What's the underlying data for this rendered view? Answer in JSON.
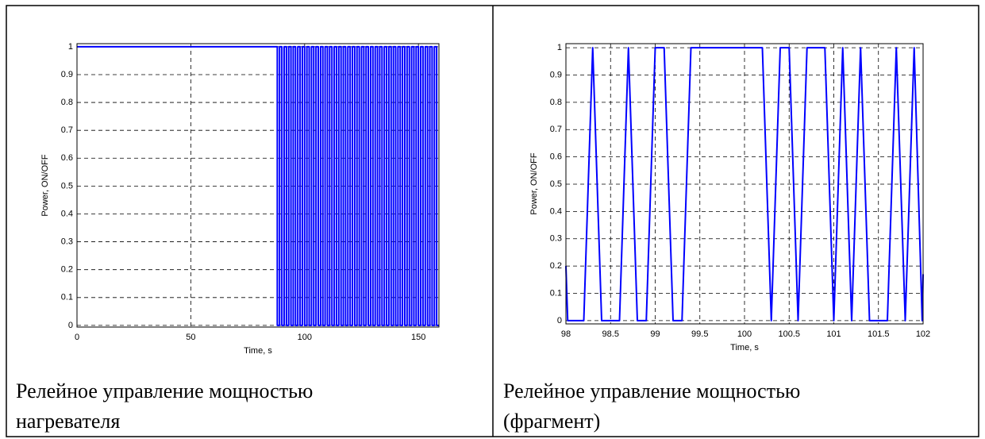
{
  "chart_data": [
    {
      "type": "line",
      "xlabel": "Time, s",
      "ylabel": "Power, ON/OFF",
      "xlim": [
        0,
        159
      ],
      "xticks": [
        0,
        50,
        100,
        150
      ],
      "ylim": [
        -0.006,
        1.011
      ],
      "yticks": [
        0,
        0.1,
        0.2,
        0.3,
        0.4,
        0.5,
        0.6,
        0.7,
        0.8,
        0.9,
        1
      ],
      "grid": true,
      "x": [
        0,
        88,
        88,
        89,
        89,
        90,
        90,
        91,
        91,
        92,
        92,
        93,
        93,
        94,
        94,
        95,
        95,
        96,
        96,
        97,
        97,
        98,
        98,
        99,
        99,
        100,
        100,
        101,
        101,
        102,
        102,
        103,
        103,
        104,
        104,
        105,
        105,
        106,
        106,
        107,
        107,
        108,
        108,
        109,
        109,
        110,
        110,
        111,
        111,
        112,
        112,
        113,
        113,
        114,
        114,
        115,
        115,
        116,
        116,
        117,
        117,
        118,
        118,
        119,
        119,
        120,
        120,
        121,
        121,
        122,
        122,
        123,
        123,
        124,
        124,
        125,
        125,
        126,
        126,
        127,
        127,
        128,
        128,
        129,
        129,
        130,
        130,
        131,
        131,
        132,
        132,
        133,
        133,
        134,
        134,
        135,
        135,
        136,
        136,
        137,
        137,
        138,
        138,
        139,
        139,
        140,
        140,
        141,
        141,
        142,
        142,
        143,
        143,
        144,
        144,
        145,
        145,
        146,
        146,
        147,
        147,
        148,
        148,
        149,
        149,
        150,
        150,
        151,
        151,
        152,
        152,
        153,
        153,
        154,
        154,
        155,
        155,
        156,
        156,
        157,
        157,
        158,
        158,
        159
      ],
      "series": [
        {
          "color": "#0000ff",
          "values": [
            1,
            1,
            0,
            0,
            1,
            1,
            0,
            0,
            1,
            1,
            0,
            0,
            1,
            1,
            0,
            0,
            1,
            1,
            0,
            0,
            1,
            1,
            0,
            0,
            1,
            1,
            0,
            0,
            1,
            1,
            0,
            0,
            1,
            1,
            0,
            0,
            1,
            1,
            0,
            0,
            1,
            1,
            0,
            0,
            1,
            1,
            0,
            0,
            1,
            1,
            0,
            0,
            1,
            1,
            0,
            0,
            1,
            1,
            0,
            0,
            1,
            1,
            0,
            0,
            1,
            1,
            0,
            0,
            1,
            1,
            0,
            0,
            1,
            1,
            0,
            0,
            1,
            1,
            0,
            0,
            1,
            1,
            0,
            0,
            1,
            1,
            0,
            0,
            1,
            1,
            0,
            0,
            1,
            1,
            0,
            0,
            1,
            1,
            0,
            0,
            1,
            1,
            0,
            0,
            1,
            1,
            0,
            0,
            1,
            1,
            0,
            0,
            1,
            1,
            0,
            0,
            1,
            1,
            0,
            0,
            1,
            1,
            0,
            0,
            1,
            1,
            0,
            0,
            1,
            1,
            0,
            0,
            1,
            1,
            0,
            0,
            1,
            1,
            0,
            0,
            1,
            1,
            0,
            0
          ]
        }
      ]
    },
    {
      "type": "line",
      "xlabel": "Time, s",
      "ylabel": "Power, ON/OFF",
      "xlim": [
        98,
        102
      ],
      "xticks": [
        98,
        98.5,
        99,
        99.5,
        100,
        100.5,
        101,
        101.5,
        102
      ],
      "ylim": [
        -0.012,
        1.015
      ],
      "yticks": [
        0,
        0.1,
        0.2,
        0.3,
        0.4,
        0.5,
        0.6,
        0.7,
        0.8,
        0.9,
        1
      ],
      "grid": true,
      "x": [
        98,
        98.02,
        98.2,
        98.3,
        98.4,
        98.6,
        98.7,
        98.8,
        98.9,
        99,
        99.1,
        99.2,
        99.3,
        99.4,
        100.2,
        100.3,
        100.4,
        100.5,
        100.6,
        100.7,
        100.9,
        101,
        101.1,
        101.2,
        101.3,
        101.4,
        101.6,
        101.7,
        101.8,
        101.9,
        101.99,
        102
      ],
      "series": [
        {
          "color": "#0000ff",
          "values": [
            0.2,
            0,
            0,
            1,
            0,
            0,
            1,
            0,
            0,
            1,
            1,
            0,
            0,
            1,
            1,
            0,
            1,
            1,
            0,
            1,
            1,
            0,
            1,
            0,
            1,
            0,
            0,
            1,
            0,
            1,
            0,
            0.17
          ]
        }
      ]
    }
  ],
  "captions": [
    "Релейное управление мощностью нагревателя",
    "Релейное управление мощностью (фрагмент)"
  ]
}
